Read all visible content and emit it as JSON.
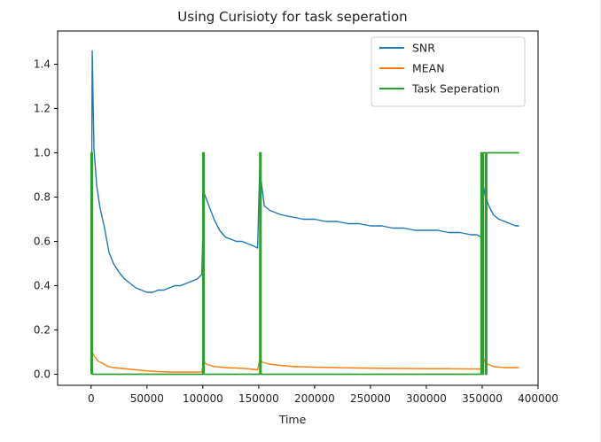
{
  "chart_data": {
    "type": "line",
    "title": "Using Curisioty for task seperation",
    "xlabel": "Time",
    "ylabel": "",
    "xlim": [
      -30000,
      400000
    ],
    "ylim": [
      -0.05,
      1.55
    ],
    "x_ticks": [
      0,
      50000,
      100000,
      150000,
      200000,
      250000,
      300000,
      350000,
      400000
    ],
    "x_tick_labels": [
      "0",
      "50000",
      "100000",
      "150000",
      "200000",
      "250000",
      "300000",
      "350000",
      "400000"
    ],
    "y_ticks": [
      0.0,
      0.2,
      0.4,
      0.6,
      0.8,
      1.0,
      1.2,
      1.4
    ],
    "y_tick_labels": [
      "0.0",
      "0.2",
      "0.4",
      "0.6",
      "0.8",
      "1.0",
      "1.2",
      "1.4"
    ],
    "grid": false,
    "legend_position": "upper right",
    "series": [
      {
        "name": "SNR",
        "color": "#1f77b4",
        "x": [
          0,
          1000,
          2500,
          5000,
          8000,
          12000,
          16000,
          20000,
          25000,
          30000,
          35000,
          40000,
          45000,
          50000,
          55000,
          60000,
          65000,
          70000,
          75000,
          80000,
          85000,
          90000,
          95000,
          99000,
          101000,
          104000,
          110000,
          115000,
          120000,
          125000,
          130000,
          135000,
          140000,
          145000,
          149000,
          151000,
          152000,
          155000,
          160000,
          170000,
          180000,
          190000,
          200000,
          210000,
          220000,
          230000,
          240000,
          250000,
          260000,
          270000,
          280000,
          290000,
          300000,
          310000,
          320000,
          330000,
          340000,
          345000,
          349000,
          351000,
          353000,
          356000,
          360000,
          365000,
          370000,
          375000,
          380000,
          383000
        ],
        "y": [
          0.3,
          1.46,
          1.02,
          0.85,
          0.75,
          0.66,
          0.55,
          0.5,
          0.46,
          0.43,
          0.41,
          0.39,
          0.38,
          0.37,
          0.37,
          0.38,
          0.38,
          0.39,
          0.4,
          0.4,
          0.41,
          0.42,
          0.43,
          0.45,
          0.82,
          0.78,
          0.7,
          0.65,
          0.62,
          0.61,
          0.6,
          0.6,
          0.59,
          0.58,
          0.57,
          0.95,
          0.88,
          0.76,
          0.74,
          0.72,
          0.71,
          0.7,
          0.7,
          0.69,
          0.69,
          0.68,
          0.68,
          0.67,
          0.67,
          0.66,
          0.66,
          0.65,
          0.65,
          0.65,
          0.64,
          0.64,
          0.63,
          0.63,
          0.62,
          0.85,
          0.8,
          0.76,
          0.72,
          0.7,
          0.69,
          0.68,
          0.67,
          0.67
        ]
      },
      {
        "name": "MEAN",
        "color": "#ff7f0e",
        "x": [
          0,
          1000,
          3000,
          6000,
          10000,
          15000,
          20000,
          30000,
          40000,
          50000,
          60000,
          70000,
          80000,
          90000,
          99000,
          101000,
          103000,
          110000,
          120000,
          130000,
          140000,
          149000,
          151000,
          153000,
          160000,
          170000,
          180000,
          200000,
          220000,
          240000,
          260000,
          280000,
          300000,
          320000,
          340000,
          349000,
          351000,
          353000,
          360000,
          370000,
          383000
        ],
        "y": [
          0.05,
          0.1,
          0.08,
          0.06,
          0.05,
          0.035,
          0.03,
          0.025,
          0.02,
          0.015,
          0.012,
          0.01,
          0.01,
          0.01,
          0.01,
          0.06,
          0.045,
          0.035,
          0.03,
          0.028,
          0.025,
          0.02,
          0.07,
          0.055,
          0.045,
          0.04,
          0.035,
          0.032,
          0.03,
          0.028,
          0.027,
          0.026,
          0.025,
          0.025,
          0.024,
          0.024,
          0.07,
          0.05,
          0.035,
          0.03,
          0.03
        ]
      },
      {
        "name": "Task Seperation",
        "color": "#2ca02c",
        "x": [
          0,
          0,
          1000,
          1000,
          100000,
          100000,
          101000,
          101000,
          151000,
          151000,
          152000,
          152000,
          349000,
          349000,
          350000,
          350000,
          351000,
          351000,
          353000,
          353000,
          354000,
          354000,
          383000
        ],
        "y": [
          0,
          1,
          1,
          0,
          0,
          1,
          1,
          0,
          0,
          1,
          1,
          0,
          0,
          1,
          1,
          0,
          0,
          1,
          1,
          0,
          0,
          1,
          1
        ]
      }
    ]
  }
}
